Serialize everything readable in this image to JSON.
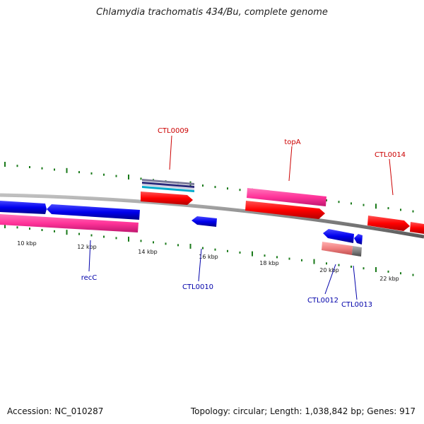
{
  "title": "Chlamydia trachomatis 434/Bu, complete genome",
  "accession_text": "Accession: NC_010287",
  "topology_text": "Topology: circular; Length: 1,038,842 bp; Genes: 917",
  "colors": {
    "backbone": "#8a8a8a",
    "forward_label": "#cc0000",
    "reverse_label": "#0000aa",
    "tick": "#1a7a1a",
    "cds_forward": "#ff0000",
    "cds_reverse": "#0000ee",
    "feature_pink": "#ff3399",
    "pseudo_pink": "#f08080",
    "grey": "#777777"
  },
  "scale_ticks": [
    "10 kbp",
    "12 kbp",
    "14 kbp",
    "16 kbp",
    "18 kbp",
    "20 kbp",
    "22 kbp"
  ],
  "gene_labels": {
    "forward": [
      "CTL0009",
      "topA",
      "CTL0014"
    ],
    "reverse": [
      "recC",
      "CTL0010",
      "CTL0012",
      "CTL0013"
    ]
  }
}
